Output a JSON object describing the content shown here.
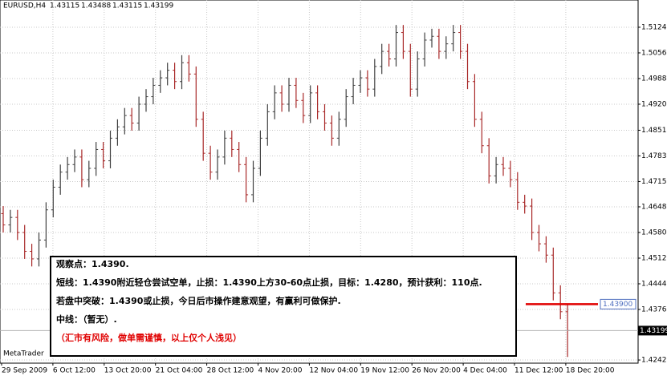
{
  "chart_data": {
    "type": "ohlc",
    "symbol": "EURUSD,H4",
    "header_values": [
      1.43115,
      1.43488,
      1.43115,
      1.43199
    ],
    "up_color": "#404040",
    "down_color": "#a82828",
    "grid": true,
    "ylim": [
      1.42336,
      1.51962
    ],
    "yticks": [
      {
        "value": 1.5124,
        "label": "1.51240"
      },
      {
        "value": 1.5056,
        "label": "1.50560"
      },
      {
        "value": 1.4988,
        "label": "1.49880"
      },
      {
        "value": 1.492,
        "label": "1.49200"
      },
      {
        "value": 1.4851,
        "label": "1.48510"
      },
      {
        "value": 1.4783,
        "label": "1.47830"
      },
      {
        "value": 1.4715,
        "label": "1.47150"
      },
      {
        "value": 1.4648,
        "label": "1.46480"
      },
      {
        "value": 1.458,
        "label": "1.45800"
      },
      {
        "value": 1.4512,
        "label": "1.45120"
      },
      {
        "value": 1.4444,
        "label": "1.44440"
      },
      {
        "value": 1.4376,
        "label": "1.43760"
      },
      {
        "value": 1.4242,
        "label": "1.42420"
      }
    ],
    "xtick_labels": [
      "29 Sep 2009",
      "6 Oct 12:00",
      "13 Oct 20:00",
      "21 Oct 04:00",
      "28 Oct 12:00",
      "4 Nov 20:00",
      "12 Nov 04:00",
      "19 Nov 12:00",
      "26 Nov 20:00",
      "4 Dec 04:00",
      "11 Dec 12:00",
      "18 Dec 20:00"
    ],
    "open": [
      1.463,
      1.46,
      1.462,
      1.458,
      1.453,
      1.451,
      1.456,
      1.464,
      1.47,
      1.474,
      1.476,
      1.478,
      1.472,
      1.475,
      1.48,
      1.477,
      1.483,
      1.486,
      1.489,
      1.487,
      1.492,
      1.494,
      1.497,
      1.499,
      1.501,
      1.498,
      1.503,
      1.5,
      1.488,
      1.479,
      1.474,
      1.478,
      1.483,
      1.48,
      1.476,
      1.468,
      1.475,
      1.483,
      1.49,
      1.495,
      1.492,
      1.497,
      1.493,
      1.489,
      1.495,
      1.49,
      1.487,
      1.483,
      1.488,
      1.494,
      1.497,
      1.499,
      1.496,
      1.502,
      1.506,
      1.504,
      1.511,
      1.506,
      1.496,
      1.504,
      1.509,
      1.51,
      1.506,
      1.508,
      1.511,
      1.506,
      1.498,
      1.488,
      1.481,
      1.473,
      1.476,
      1.475,
      1.472,
      1.466,
      1.465,
      1.458,
      1.455,
      1.452,
      1.442,
      1.437
    ],
    "high": [
      1.465,
      1.464,
      1.464,
      1.46,
      1.455,
      1.458,
      1.466,
      1.472,
      1.476,
      1.478,
      1.48,
      1.48,
      1.477,
      1.482,
      1.482,
      1.485,
      1.488,
      1.491,
      1.491,
      1.494,
      1.496,
      1.499,
      1.501,
      1.503,
      1.503,
      1.505,
      1.505,
      1.502,
      1.49,
      1.481,
      1.48,
      1.485,
      1.485,
      1.482,
      1.478,
      1.477,
      1.485,
      1.492,
      1.497,
      1.497,
      1.499,
      1.499,
      1.495,
      1.497,
      1.497,
      1.492,
      1.489,
      1.49,
      1.496,
      1.499,
      1.501,
      1.501,
      1.504,
      1.508,
      1.508,
      1.513,
      1.513,
      1.508,
      1.506,
      1.511,
      1.512,
      1.512,
      1.51,
      1.513,
      1.513,
      1.508,
      1.5,
      1.49,
      1.483,
      1.478,
      1.478,
      1.477,
      1.474,
      1.468,
      1.467,
      1.46,
      1.457,
      1.454,
      1.444,
      1.439
    ],
    "low": [
      1.458,
      1.458,
      1.456,
      1.451,
      1.449,
      1.449,
      1.454,
      1.462,
      1.468,
      1.472,
      1.474,
      1.47,
      1.47,
      1.473,
      1.475,
      1.475,
      1.481,
      1.484,
      1.485,
      1.485,
      1.49,
      1.492,
      1.495,
      1.497,
      1.496,
      1.496,
      1.498,
      1.486,
      1.477,
      1.472,
      1.472,
      1.476,
      1.478,
      1.474,
      1.466,
      1.466,
      1.473,
      1.481,
      1.488,
      1.49,
      1.49,
      1.491,
      1.487,
      1.487,
      1.488,
      1.485,
      1.481,
      1.481,
      1.486,
      1.492,
      1.495,
      1.494,
      1.494,
      1.5,
      1.502,
      1.502,
      1.504,
      1.494,
      1.494,
      1.502,
      1.507,
      1.504,
      1.504,
      1.506,
      1.504,
      1.496,
      1.486,
      1.479,
      1.471,
      1.471,
      1.473,
      1.47,
      1.464,
      1.463,
      1.456,
      1.453,
      1.45,
      1.44,
      1.435,
      1.425
    ],
    "close": [
      1.46,
      1.462,
      1.458,
      1.453,
      1.451,
      1.456,
      1.464,
      1.47,
      1.474,
      1.476,
      1.478,
      1.472,
      1.475,
      1.48,
      1.477,
      1.483,
      1.486,
      1.489,
      1.487,
      1.492,
      1.494,
      1.497,
      1.499,
      1.501,
      1.498,
      1.503,
      1.5,
      1.488,
      1.479,
      1.474,
      1.478,
      1.483,
      1.48,
      1.476,
      1.468,
      1.475,
      1.483,
      1.49,
      1.495,
      1.492,
      1.497,
      1.493,
      1.489,
      1.495,
      1.49,
      1.487,
      1.483,
      1.488,
      1.494,
      1.497,
      1.499,
      1.496,
      1.502,
      1.506,
      1.504,
      1.511,
      1.506,
      1.496,
      1.504,
      1.509,
      1.51,
      1.506,
      1.508,
      1.511,
      1.506,
      1.498,
      1.488,
      1.481,
      1.473,
      1.476,
      1.475,
      1.472,
      1.466,
      1.465,
      1.458,
      1.455,
      1.452,
      1.442,
      1.437,
      1.432
    ],
    "current_price": 1.43199,
    "level_line": {
      "value": 1.439,
      "label": "1.43900",
      "color": "#e00000"
    },
    "watermark": "MetaTrader",
    "annotation": {
      "lines": [
        "观察点：1.4390.",
        "短线：1.4390附近轻仓尝试空单，止损：1.4390上方30-60点止损，目标：1.4280，预计获利：110点.",
        "若盘中突破：1.4390或止损，今日后市操作建意观望，有赢利可做保护.",
        "中线：（暂无）."
      ],
      "warning": "（汇市有风险，做单需谨慎，以上仅个人浅见）"
    }
  }
}
